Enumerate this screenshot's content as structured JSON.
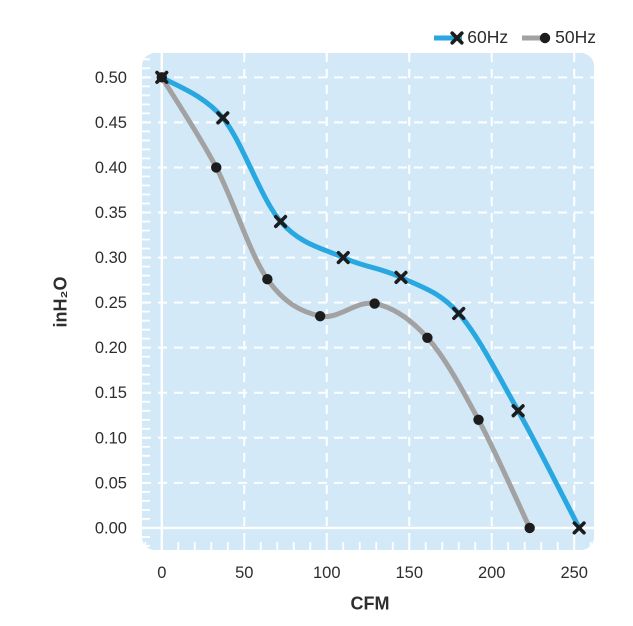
{
  "chart_data": {
    "type": "line",
    "title": "",
    "xlabel": "CFM",
    "ylabel": "inH₂O",
    "xlim": [
      -12,
      262
    ],
    "ylim": [
      -0.0245,
      0.527
    ],
    "x_ticks": [
      {
        "value": 0,
        "label": "0"
      },
      {
        "value": 50,
        "label": "50"
      },
      {
        "value": 100,
        "label": "100"
      },
      {
        "value": 150,
        "label": "150"
      },
      {
        "value": 200,
        "label": "200"
      },
      {
        "value": 250,
        "label": "250"
      }
    ],
    "y_ticks": [
      {
        "value": 0.5,
        "label": "0.50"
      },
      {
        "value": 0.45,
        "label": "0.45"
      },
      {
        "value": 0.4,
        "label": "0.40"
      },
      {
        "value": 0.35,
        "label": "0.35"
      },
      {
        "value": 0.3,
        "label": "0.30"
      },
      {
        "value": 0.25,
        "label": "0.25"
      },
      {
        "value": 0.2,
        "label": "0.20"
      },
      {
        "value": 0.15,
        "label": "0.15"
      },
      {
        "value": 0.1,
        "label": "0.10"
      },
      {
        "value": 0.05,
        "label": "0.05"
      },
      {
        "value": 0.0,
        "label": "0.00"
      }
    ],
    "x_minor_step": 10,
    "y_minor_step": 0.01,
    "grid": {
      "on": true,
      "color": "#ffffff",
      "style": "dashed",
      "zero_lines": "solid"
    },
    "plot_bg": "#d3e9f8",
    "legend_position": "top-right",
    "series": [
      {
        "name": "60Hz",
        "color": "#28a7e0",
        "marker": "x",
        "marker_color": "#1c1c1c",
        "x": [
          0,
          37,
          72,
          110,
          145,
          180,
          216,
          253
        ],
        "y": [
          0.5,
          0.455,
          0.34,
          0.3,
          0.278,
          0.238,
          0.13,
          0.0
        ]
      },
      {
        "name": "50Hz",
        "color": "#a2a2a2",
        "marker": "circle",
        "marker_color": "#1c1c1c",
        "x": [
          0,
          33,
          64,
          96,
          129,
          161,
          192,
          223
        ],
        "y": [
          0.5,
          0.4,
          0.276,
          0.235,
          0.249,
          0.211,
          0.12,
          0.0
        ]
      }
    ]
  }
}
